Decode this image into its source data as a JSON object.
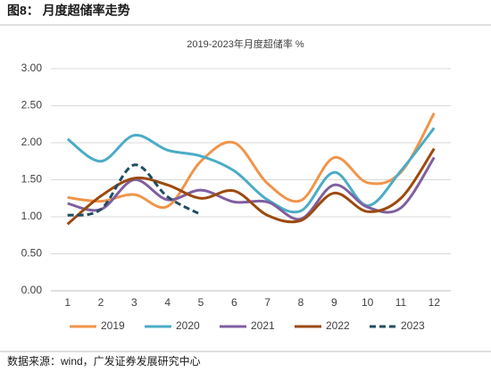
{
  "header": {
    "title": "图8： 月度超储率走势"
  },
  "chart_data": {
    "type": "line",
    "title": "2019-2023年月度超储率 %",
    "categories": [
      1,
      2,
      3,
      4,
      5,
      6,
      7,
      8,
      9,
      10,
      11,
      12
    ],
    "series": [
      {
        "name": "2019",
        "color": "#f0954a",
        "dashed": false,
        "values": [
          1.26,
          1.21,
          1.3,
          1.14,
          1.75,
          2.0,
          1.45,
          1.22,
          1.8,
          1.46,
          1.6,
          2.4
        ]
      },
      {
        "name": "2020",
        "color": "#4bacc6",
        "dashed": false,
        "values": [
          2.05,
          1.75,
          2.1,
          1.9,
          1.82,
          1.62,
          1.23,
          1.08,
          1.6,
          1.15,
          1.62,
          2.2
        ]
      },
      {
        "name": "2021",
        "color": "#7f5fa0",
        "dashed": false,
        "values": [
          1.18,
          1.1,
          1.5,
          1.23,
          1.36,
          1.2,
          1.2,
          0.97,
          1.43,
          1.13,
          1.12,
          1.8
        ]
      },
      {
        "name": "2022",
        "color": "#9c4a0e",
        "dashed": false,
        "values": [
          0.9,
          1.28,
          1.52,
          1.43,
          1.25,
          1.35,
          1.02,
          0.95,
          1.32,
          1.07,
          1.25,
          1.92
        ]
      },
      {
        "name": "2023",
        "color": "#1f4e60",
        "dashed": true,
        "values": [
          1.02,
          1.1,
          1.7,
          1.27,
          1.03,
          null,
          null,
          null,
          null,
          null,
          null,
          null
        ]
      }
    ],
    "ylim": [
      0,
      3
    ],
    "yticks": [
      {
        "value": 0,
        "label": "0.00"
      },
      {
        "value": 0.5,
        "label": "0.50"
      },
      {
        "value": 1,
        "label": "1.00"
      },
      {
        "value": 1.5,
        "label": "1.50"
      },
      {
        "value": 2,
        "label": "2.00"
      },
      {
        "value": 2.5,
        "label": "2.50"
      },
      {
        "value": 3,
        "label": "3.00"
      }
    ],
    "grid": true,
    "smooth": true,
    "legend": "bottom"
  },
  "footer": {
    "source": "数据来源：wind，广发证券发展研究中心"
  }
}
